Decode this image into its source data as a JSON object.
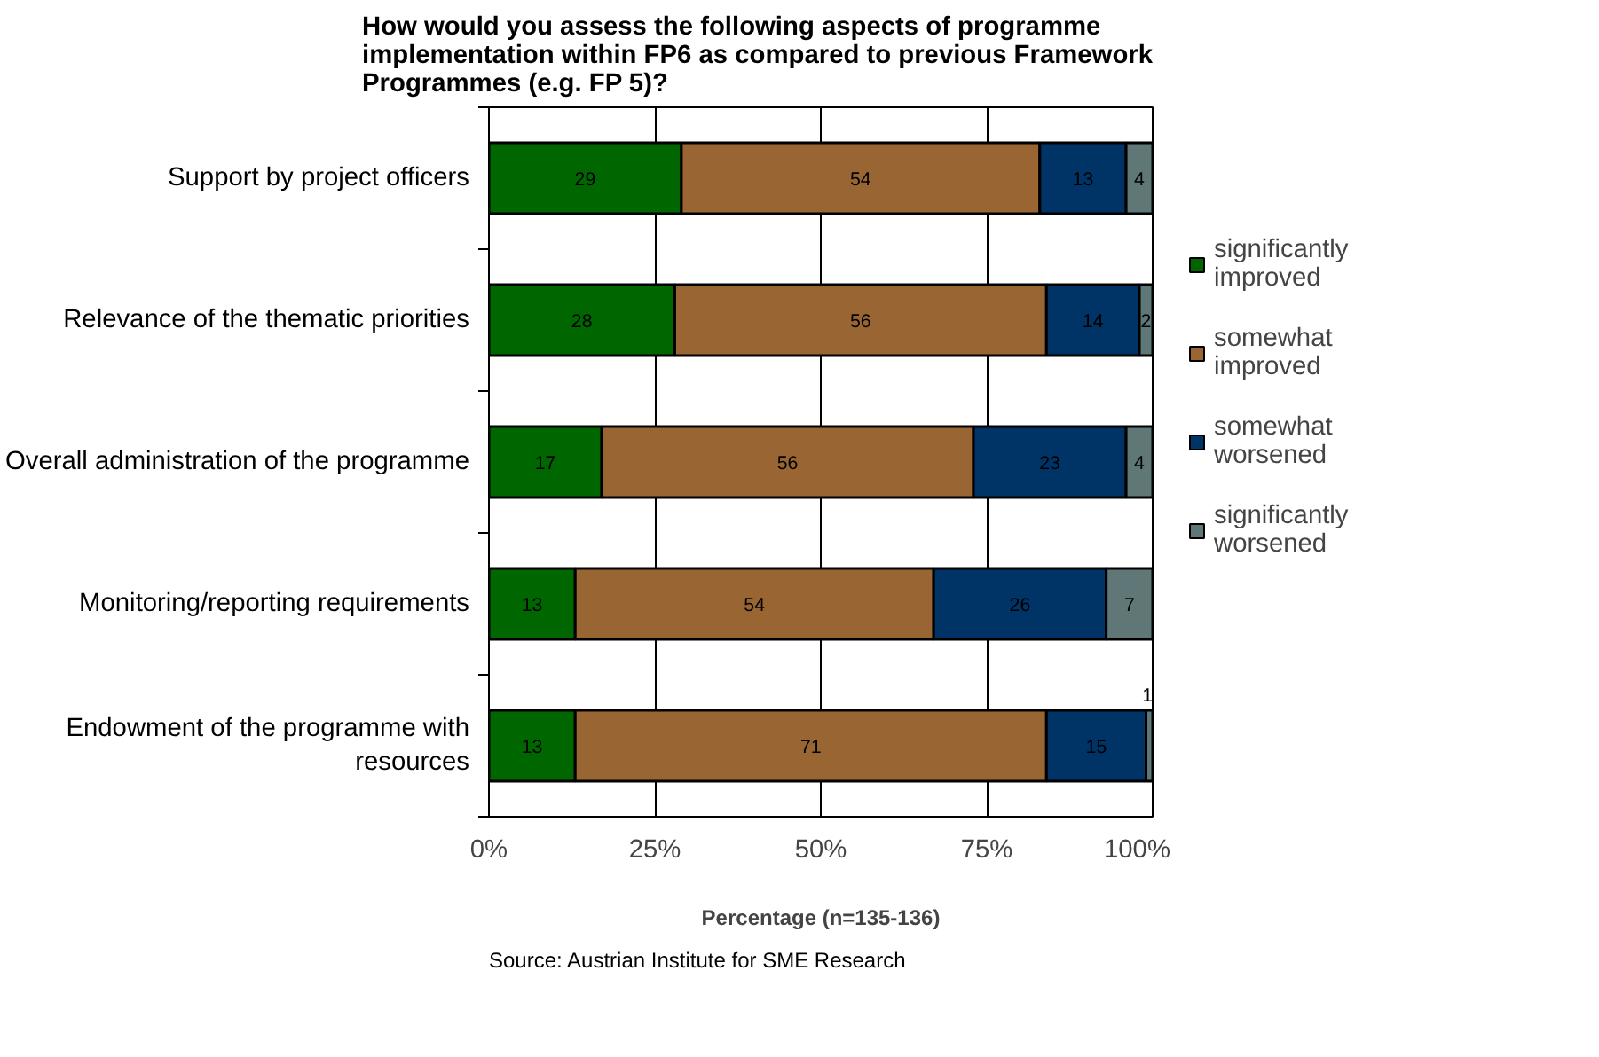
{
  "chart_data": {
    "type": "bar",
    "orientation": "horizontal",
    "stacked": true,
    "title": "How would you assess the following aspects of programme implementation within FP6 as compared to previous Framework Programmes (e.g. FP 5)?",
    "xlabel": "Percentage (n=135-136)",
    "categories": [
      "Support by project officers",
      "Relevance of the thematic priorities",
      "Overall administration of the programme",
      "Monitoring/reporting requirements",
      "Endowment of the programme with resources"
    ],
    "series": [
      {
        "name": "significantly improved",
        "color": "#006600",
        "values": [
          29,
          28,
          17,
          13,
          13
        ]
      },
      {
        "name": "somewhat improved",
        "color": "#996633",
        "values": [
          54,
          56,
          56,
          54,
          71
        ]
      },
      {
        "name": "somewhat worsened",
        "color": "#003366",
        "values": [
          13,
          14,
          23,
          26,
          15
        ]
      },
      {
        "name": "significantly worsened",
        "color": "#5f7777",
        "values": [
          4,
          2,
          4,
          7,
          1
        ]
      }
    ],
    "xlim": [
      0,
      100
    ],
    "xticks": [
      {
        "value": 0,
        "label": "0%"
      },
      {
        "value": 25,
        "label": "25%"
      },
      {
        "value": 50,
        "label": "50%"
      },
      {
        "value": 75,
        "label": "75%"
      },
      {
        "value": 100,
        "label": "100%"
      }
    ],
    "grid": "x",
    "legend": "right",
    "data_labels": true,
    "annotations": [
      "Source: Austrian Institute for SME Research"
    ]
  }
}
